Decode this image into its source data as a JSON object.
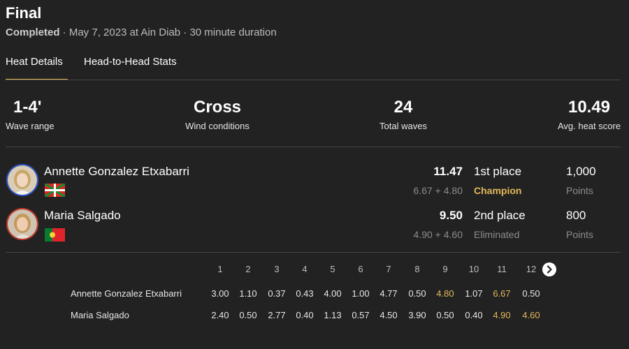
{
  "header": {
    "title": "Final",
    "status": "Completed",
    "details": " · May 7, 2023 at Ain Diab · 30 minute duration"
  },
  "tabs": [
    {
      "label": "Heat Details",
      "active": true
    },
    {
      "label": "Head-to-Head Stats",
      "active": false
    }
  ],
  "stats": [
    {
      "value": "1-4'",
      "label": "Wave range"
    },
    {
      "value": "Cross",
      "label": "Wind conditions"
    },
    {
      "value": "24",
      "label": "Total waves"
    },
    {
      "value": "10.49",
      "label": "Avg. heat score"
    }
  ],
  "athletes": [
    {
      "name": "Annette Gonzalez Etxabarri",
      "flag": "basque-flag-icon",
      "score": "11.47",
      "waves": "6.67 + 4.80",
      "place": "1st place",
      "result": "Champion",
      "points": "1,000",
      "points_label": "Points"
    },
    {
      "name": "Maria Salgado",
      "flag": "portugal-flag-icon",
      "score": "9.50",
      "waves": "4.90 + 4.60",
      "place": "2nd place",
      "result": "Eliminated",
      "points": "800",
      "points_label": "Points"
    }
  ],
  "wave_grid": {
    "columns": [
      "1",
      "2",
      "3",
      "4",
      "5",
      "6",
      "7",
      "8",
      "9",
      "10",
      "11",
      "12"
    ],
    "rows": [
      {
        "name": "Annette Gonzalez Etxabarri",
        "scores": [
          "3.00",
          "1.10",
          "0.37",
          "0.43",
          "4.00",
          "1.00",
          "4.77",
          "0.50",
          "4.80",
          "1.07",
          "6.67",
          "0.50"
        ],
        "counted": [
          8,
          10
        ]
      },
      {
        "name": "Maria Salgado",
        "scores": [
          "2.40",
          "0.50",
          "2.77",
          "0.40",
          "1.13",
          "0.57",
          "4.50",
          "3.90",
          "0.50",
          "0.40",
          "4.90",
          "4.60"
        ],
        "counted": [
          10,
          11
        ]
      }
    ],
    "next_icon": "chevron-right-icon"
  },
  "colors": {
    "background": "#222222",
    "accent": "#e2b85b",
    "muted": "#8c8c8c"
  }
}
